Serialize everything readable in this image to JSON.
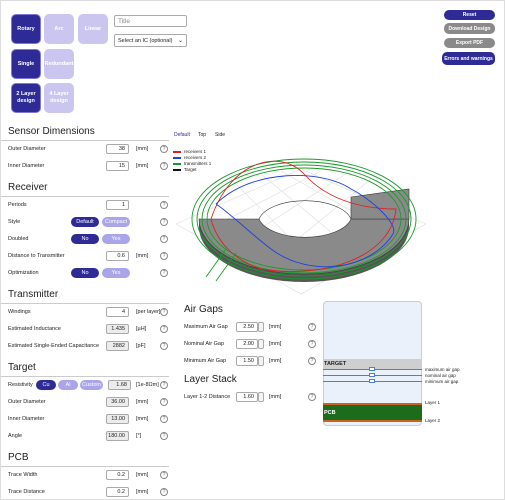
{
  "design_buttons": [
    {
      "label": "Rotary",
      "selected": true
    },
    {
      "label": "Arc",
      "selected": false
    },
    {
      "label": "Linear",
      "selected": false
    },
    {
      "label": "Single",
      "selected": true
    },
    {
      "label": "Redundant",
      "selected": false
    },
    {
      "label": "2 Layer design",
      "selected": true
    },
    {
      "label": "4 Layer design",
      "selected": false
    }
  ],
  "title_placeholder": "Title",
  "ic_select": "Select an IC (optional)",
  "actions": [
    "Reset",
    "Download Design",
    "Export PDF",
    "Errors and warnings"
  ],
  "help_icon": "?",
  "sections": [
    {
      "title": "Sensor Dimensions",
      "rows": [
        {
          "label": "Outer Diameter",
          "value": "38",
          "unit": "[mm]"
        },
        {
          "label": "Inner Diameter",
          "value": "15",
          "unit": "[mm]"
        }
      ]
    },
    {
      "title": "Receiver",
      "rows": [
        {
          "label": "Periods",
          "value": "1"
        },
        {
          "label": "Style",
          "options": [
            "Default",
            "Compact"
          ],
          "selected": 0
        },
        {
          "label": "Doubled",
          "options": [
            "No",
            "Yes"
          ],
          "selected": 0
        },
        {
          "label": "Distance to Transmitter",
          "value": "0.6",
          "unit": "[mm]"
        },
        {
          "label": "Optimization",
          "options": [
            "No",
            "Yes"
          ],
          "selected": 0
        }
      ]
    },
    {
      "title": "Transmitter",
      "rows": [
        {
          "label": "Windings",
          "value": "4",
          "unit": "[per layer]"
        },
        {
          "label": "Estimated Inductance",
          "value": "1.435",
          "unit": "[µH]",
          "readonly": true
        },
        {
          "label": "Estimated Single-Ended Capacitance",
          "value": "2882",
          "unit": "[pF]",
          "readonly": true
        }
      ]
    },
    {
      "title": "Target",
      "rows": [
        {
          "label": "Resistivity",
          "options": [
            "Cu",
            "Al",
            "Custom"
          ],
          "selected": 0,
          "value": "1.68",
          "unit": "[1e-8Ωm]",
          "readonly": true
        },
        {
          "label": "Outer Diameter",
          "value": "36.00",
          "unit": "[mm]",
          "readonly": true
        },
        {
          "label": "Inner Diameter",
          "value": "13.00",
          "unit": "[mm]",
          "readonly": true
        },
        {
          "label": "Angle",
          "value": "180.00",
          "unit": "[°]",
          "readonly": true
        }
      ]
    },
    {
      "title": "PCB",
      "rows": [
        {
          "label": "Trace Width",
          "value": "0.2",
          "unit": "[mm]"
        },
        {
          "label": "Trace Distance",
          "value": "0.2",
          "unit": "[mm]"
        }
      ]
    }
  ],
  "view": {
    "tabs": [
      "Default",
      "Top",
      "Side"
    ],
    "legend": [
      {
        "name": "receivers 1",
        "color": "#e02020"
      },
      {
        "name": "receivers 2",
        "color": "#2040e0"
      },
      {
        "name": "transmitters 1",
        "color": "#1a9a2a"
      },
      {
        "name": "Target",
        "color": "#111111"
      }
    ]
  },
  "air_gaps": {
    "title": "Air Gaps",
    "rows": [
      {
        "label": "Maximum Air Gap",
        "value": "2.50",
        "unit": "[mm]"
      },
      {
        "label": "Nominal Air Gap",
        "value": "2.00",
        "unit": "[mm]"
      },
      {
        "label": "Minimum Air Gap",
        "value": "1.50",
        "unit": "[mm]"
      }
    ]
  },
  "layer_stack": {
    "title": "Layer Stack",
    "rows": [
      {
        "label": "Layer 1-2 Distance",
        "value": "1.60",
        "unit": "[mm]"
      }
    ]
  },
  "stack_diagram": {
    "target": "TARGET",
    "pcb": "PCB",
    "labels": [
      "maximum air gap",
      "nominal air gap",
      "minimum air gap",
      "Layer 1",
      "Layer 2"
    ]
  }
}
